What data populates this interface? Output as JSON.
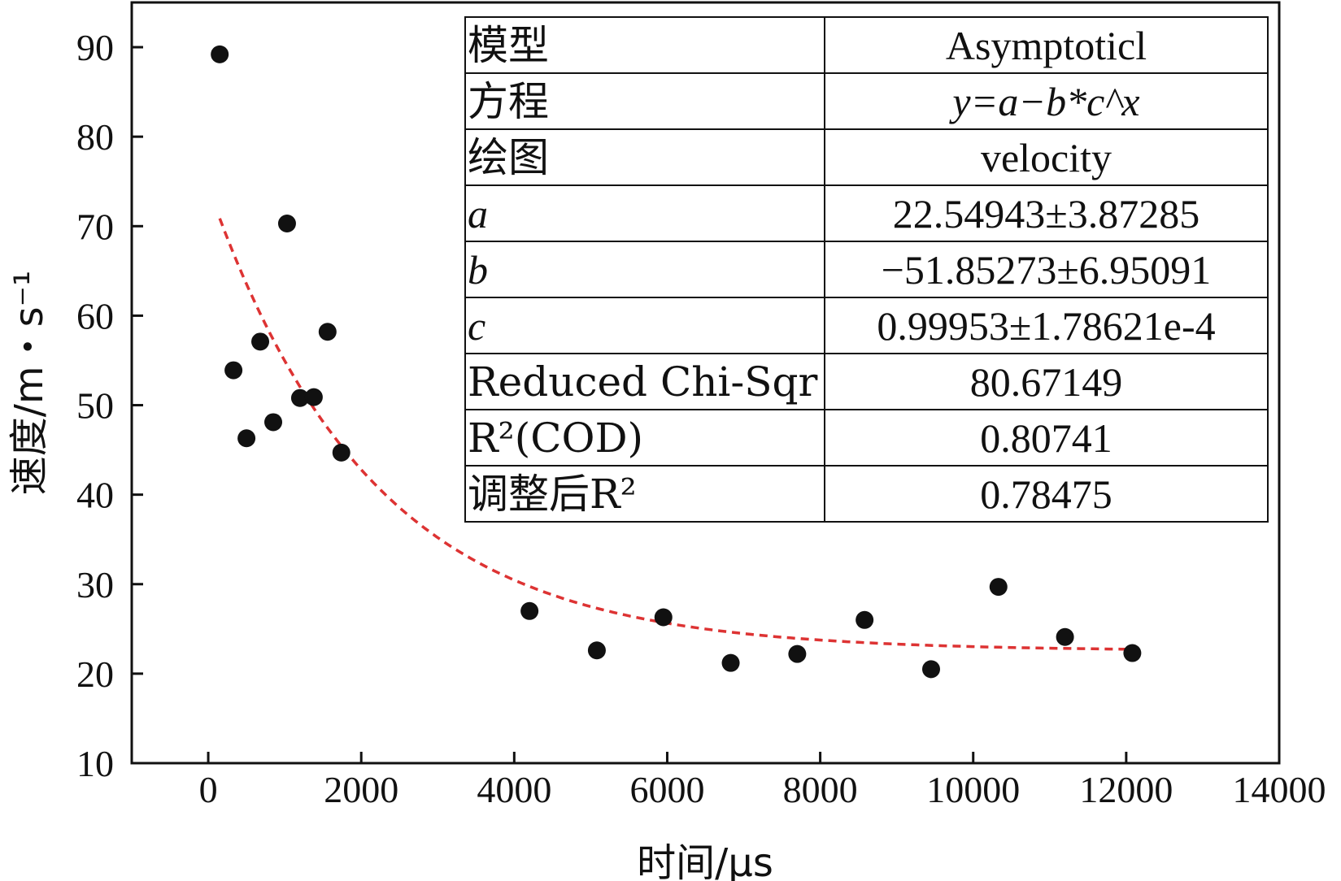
{
  "chart_data": {
    "type": "scatter",
    "title": "",
    "xlabel": "时间/μs",
    "ylabel": "速度/m・s⁻¹",
    "xlim": [
      -1000,
      14000
    ],
    "ylim": [
      10,
      95
    ],
    "x_ticks": [
      0,
      2000,
      4000,
      6000,
      8000,
      10000,
      12000,
      14000
    ],
    "x_tick_labels": [
      "0",
      "2000",
      "4000",
      "6000",
      "8000",
      "10000",
      "12000",
      "14000"
    ],
    "y_ticks": [
      10,
      20,
      30,
      40,
      50,
      60,
      70,
      80,
      90
    ],
    "y_tick_labels": [
      "10",
      "20",
      "30",
      "40",
      "50",
      "60",
      "70",
      "80",
      "90"
    ],
    "grid": false,
    "series": [
      {
        "name": "velocity",
        "kind": "scatter",
        "color": "#111111",
        "points": [
          {
            "x": 150,
            "y": 89.2
          },
          {
            "x": 330,
            "y": 53.9
          },
          {
            "x": 500,
            "y": 46.3
          },
          {
            "x": 680,
            "y": 57.1
          },
          {
            "x": 850,
            "y": 48.1
          },
          {
            "x": 1030,
            "y": 70.3
          },
          {
            "x": 1200,
            "y": 50.8
          },
          {
            "x": 1380,
            "y": 50.9
          },
          {
            "x": 1560,
            "y": 58.2
          },
          {
            "x": 1740,
            "y": 44.7
          },
          {
            "x": 4200,
            "y": 27.0
          },
          {
            "x": 5080,
            "y": 22.6
          },
          {
            "x": 5950,
            "y": 26.3
          },
          {
            "x": 6830,
            "y": 21.2
          },
          {
            "x": 7700,
            "y": 22.2
          },
          {
            "x": 8580,
            "y": 26.0
          },
          {
            "x": 9450,
            "y": 20.5
          },
          {
            "x": 10330,
            "y": 29.7
          },
          {
            "x": 11200,
            "y": 24.1
          },
          {
            "x": 12080,
            "y": 22.3
          }
        ]
      },
      {
        "name": "Asymptoticl fit",
        "kind": "fit-line",
        "color": "#dd3333",
        "equation": "y = a - b*c^x",
        "a": 22.54943,
        "b": -51.85273,
        "c": 0.99953,
        "x_range": [
          150,
          12080
        ]
      }
    ]
  },
  "fit_table": {
    "rows": [
      {
        "key": "模型",
        "value": "Asymptoticl",
        "key_style": "",
        "value_style": ""
      },
      {
        "key": "方程",
        "value": "y=a−b*c^x",
        "key_style": "",
        "value_style": "italic"
      },
      {
        "key": "绘图",
        "value": "velocity",
        "key_style": "",
        "value_style": ""
      },
      {
        "key": "a",
        "value": "22.54943±3.87285",
        "key_style": "italic",
        "value_style": ""
      },
      {
        "key": "b",
        "value": "−51.85273±6.95091",
        "key_style": "italic",
        "value_style": ""
      },
      {
        "key": "c",
        "value": "0.99953±1.78621e-4",
        "key_style": "italic",
        "value_style": ""
      },
      {
        "key": "Reduced Chi-Sqr",
        "value": "80.67149",
        "key_style": "",
        "value_style": ""
      },
      {
        "key": "R²(COD)",
        "value": "0.80741",
        "key_style": "",
        "value_style": ""
      },
      {
        "key": "调整后R²",
        "value": "0.78475",
        "key_style": "",
        "value_style": ""
      }
    ]
  }
}
